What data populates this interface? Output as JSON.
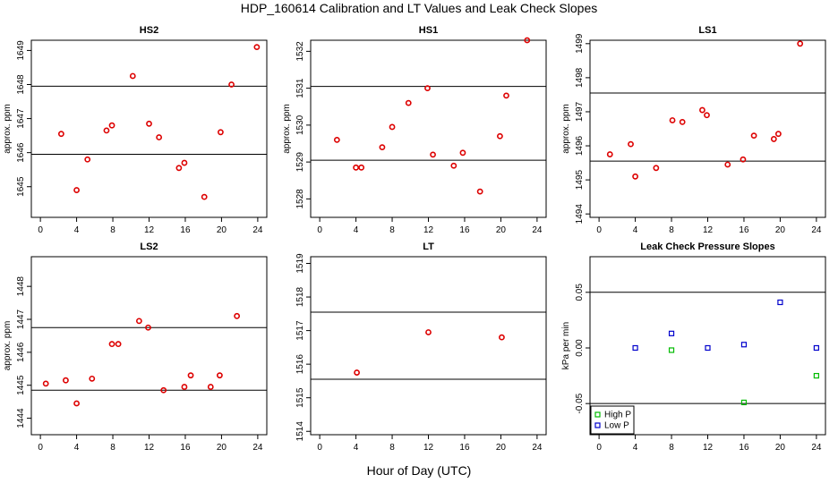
{
  "title": "HDP_160614  Calibration and LT Values and Leak Check Slopes",
  "xlabel": "Hour of Day (UTC)",
  "chart_data": [
    {
      "type": "scatter",
      "title": "HS2",
      "ylabel": "approx. ppm",
      "xlim": [
        -1,
        25
      ],
      "ylim": [
        1644.1,
        1649.3
      ],
      "xticks": [
        0,
        4,
        8,
        12,
        16,
        20,
        24
      ],
      "yticks": [
        1645,
        1646,
        1647,
        1648,
        1649
      ],
      "hlines": [
        1647.95,
        1645.95
      ],
      "x": [
        2.3,
        4.0,
        5.2,
        7.3,
        7.9,
        10.2,
        12.0,
        13.1,
        15.3,
        15.9,
        18.1,
        19.9,
        21.1,
        23.9
      ],
      "y": [
        1646.55,
        1644.9,
        1645.8,
        1646.65,
        1646.8,
        1648.25,
        1646.85,
        1646.45,
        1645.55,
        1645.7,
        1644.7,
        1646.6,
        1648.0,
        1649.1
      ],
      "colors": [
        "#dd0000"
      ]
    },
    {
      "type": "scatter",
      "title": "HS1",
      "ylabel": "approx. ppm",
      "xlim": [
        -1,
        25
      ],
      "ylim": [
        1527.5,
        1532.3
      ],
      "xticks": [
        0,
        4,
        8,
        12,
        16,
        20,
        24
      ],
      "yticks": [
        1528,
        1529,
        1530,
        1531,
        1532
      ],
      "hlines": [
        1531.05,
        1529.05
      ],
      "x": [
        1.9,
        4.0,
        4.6,
        6.9,
        8.0,
        9.8,
        11.9,
        12.5,
        14.8,
        15.8,
        17.7,
        19.9,
        20.6,
        22.9
      ],
      "y": [
        1529.6,
        1528.85,
        1528.85,
        1529.4,
        1529.95,
        1530.6,
        1531.0,
        1529.2,
        1528.9,
        1529.25,
        1528.2,
        1529.7,
        1530.8,
        1532.3
      ],
      "colors": [
        "#dd0000"
      ]
    },
    {
      "type": "scatter",
      "title": "LS1",
      "ylabel": "approx. ppm",
      "xlim": [
        -1,
        25
      ],
      "ylim": [
        1493.9,
        1499.1
      ],
      "xticks": [
        0,
        4,
        8,
        12,
        16,
        20,
        24
      ],
      "yticks": [
        1494,
        1495,
        1496,
        1497,
        1498,
        1499
      ],
      "hlines": [
        1497.55,
        1495.55
      ],
      "x": [
        1.2,
        3.5,
        4.0,
        6.3,
        8.1,
        9.2,
        11.4,
        11.9,
        14.2,
        15.9,
        17.1,
        19.3,
        19.8,
        22.2
      ],
      "y": [
        1495.75,
        1496.05,
        1495.1,
        1495.35,
        1496.75,
        1496.7,
        1497.05,
        1496.9,
        1495.45,
        1495.6,
        1496.3,
        1496.2,
        1496.35,
        1499.0
      ],
      "colors": [
        "#dd0000"
      ]
    },
    {
      "type": "scatter",
      "title": "LS2",
      "ylabel": "approx. ppm",
      "xlim": [
        -1,
        25
      ],
      "ylim": [
        1443.5,
        1448.9
      ],
      "xticks": [
        0,
        4,
        8,
        12,
        16,
        20,
        24
      ],
      "yticks": [
        1444,
        1445,
        1446,
        1447,
        1448
      ],
      "hlines": [
        1446.75,
        1444.85
      ],
      "x": [
        0.6,
        2.8,
        4.0,
        5.7,
        7.9,
        8.6,
        10.9,
        11.9,
        13.6,
        15.9,
        16.6,
        18.8,
        19.8,
        21.7
      ],
      "y": [
        1445.05,
        1445.15,
        1444.45,
        1445.2,
        1446.25,
        1446.25,
        1446.95,
        1446.75,
        1444.85,
        1444.95,
        1445.3,
        1444.95,
        1445.3,
        1447.1
      ],
      "colors": [
        "#dd0000"
      ]
    },
    {
      "type": "scatter",
      "title": "LT",
      "ylabel": "",
      "xlim": [
        -1,
        25
      ],
      "ylim": [
        1513.9,
        1519.2
      ],
      "xticks": [
        0,
        4,
        8,
        12,
        16,
        20,
        24
      ],
      "yticks": [
        1514,
        1515,
        1516,
        1517,
        1518,
        1519
      ],
      "hlines": [
        1517.55,
        1515.55
      ],
      "x": [
        4.1,
        12.0,
        20.1
      ],
      "y": [
        1515.75,
        1516.95,
        1516.8
      ],
      "colors": [
        "#dd0000"
      ]
    },
    {
      "type": "scatter",
      "title": "Leak Check Pressure Slopes",
      "ylabel": "kPa per min",
      "xlim": [
        -1,
        25
      ],
      "ylim": [
        -0.078,
        0.082
      ],
      "xticks": [
        0,
        4,
        8,
        12,
        16,
        20,
        24
      ],
      "yticks": [
        -0.05,
        0.0,
        0.05
      ],
      "ytick_labels": [
        "-0.05",
        "0.00",
        "0.05"
      ],
      "hlines": [
        0.05,
        -0.05
      ],
      "series": [
        {
          "name": "High P",
          "x": [
            8.0,
            16.0,
            24.0
          ],
          "y": [
            -0.002,
            -0.049,
            -0.025
          ],
          "color": "#00bb00"
        },
        {
          "name": "Low P",
          "x": [
            4.0,
            8.0,
            12.0,
            16.0,
            20.0,
            24.0
          ],
          "y": [
            0.0,
            0.013,
            0.0,
            0.003,
            0.041,
            0.0
          ],
          "color": "#0000cc"
        }
      ],
      "legend": "bottom-left"
    }
  ]
}
